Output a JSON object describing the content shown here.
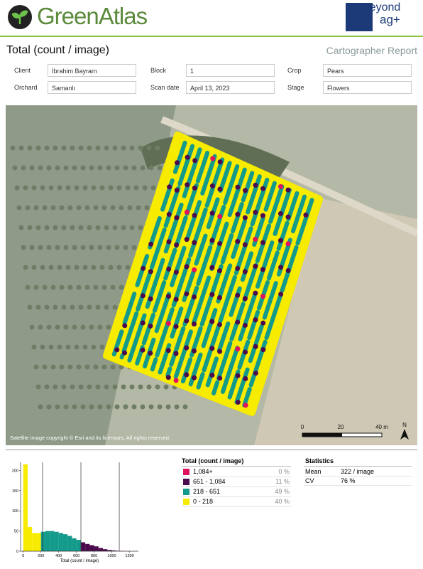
{
  "header": {
    "logo": "GreenAtlas",
    "partner_logo": {
      "line1": "Beyond",
      "line2": "ag+"
    },
    "title": "Total (count / image)",
    "report_type": "Cartographer Report"
  },
  "fields": [
    {
      "label": "Client",
      "value": "İbrahim Bayram"
    },
    {
      "label": "Block",
      "value": "1"
    },
    {
      "label": "Crop",
      "value": "Pears"
    },
    {
      "label": "Orchard",
      "value": "Samanlı"
    },
    {
      "label": "Scan date",
      "value": "April 13, 2023"
    },
    {
      "label": "Stage",
      "value": "Flowers"
    }
  ],
  "map": {
    "copyright": "Satellite image copyright © Esri and its licensors. All rights reserved.",
    "scale_labels": [
      "0",
      "20",
      "40 m"
    ],
    "north": "N"
  },
  "histogram": {
    "type": "histogram",
    "xlabel": "Total (count / image)",
    "bins": [
      0,
      50,
      100,
      150,
      200,
      250,
      300,
      350,
      400,
      450,
      500,
      550,
      600,
      650,
      700,
      750,
      800,
      850,
      900,
      950,
      1000,
      1050,
      1100,
      1150,
      1200,
      1250
    ],
    "counts": [
      215,
      60,
      45,
      45,
      48,
      50,
      50,
      48,
      45,
      42,
      38,
      32,
      28,
      22,
      18,
      15,
      12,
      8,
      5,
      3,
      2,
      1,
      1,
      0,
      0
    ],
    "breaks": [
      218,
      651,
      1084
    ],
    "xlim": [
      -30,
      1300
    ],
    "ylim": [
      0,
      220
    ],
    "xticks": [
      0,
      200,
      400,
      600,
      800,
      1000,
      1200
    ],
    "yticks": [
      0,
      50,
      100,
      150,
      200
    ]
  },
  "legend": {
    "title": "Total (count / image)",
    "rows": [
      {
        "color": "#e0115f",
        "range": "1,084+",
        "share": "0 %"
      },
      {
        "color": "#4b0a4e",
        "range": "651 - 1,084",
        "share": "11 %"
      },
      {
        "color": "#129a8a",
        "range": "218 - 651",
        "share": "49 %"
      },
      {
        "color": "#f7eb00",
        "range": "0 - 218",
        "share": "40 %"
      }
    ]
  },
  "statistics": {
    "title": "Statistics",
    "rows": [
      {
        "label": "Mean",
        "value": "322 / image"
      },
      {
        "label": "CV",
        "value": "76 %"
      }
    ]
  }
}
